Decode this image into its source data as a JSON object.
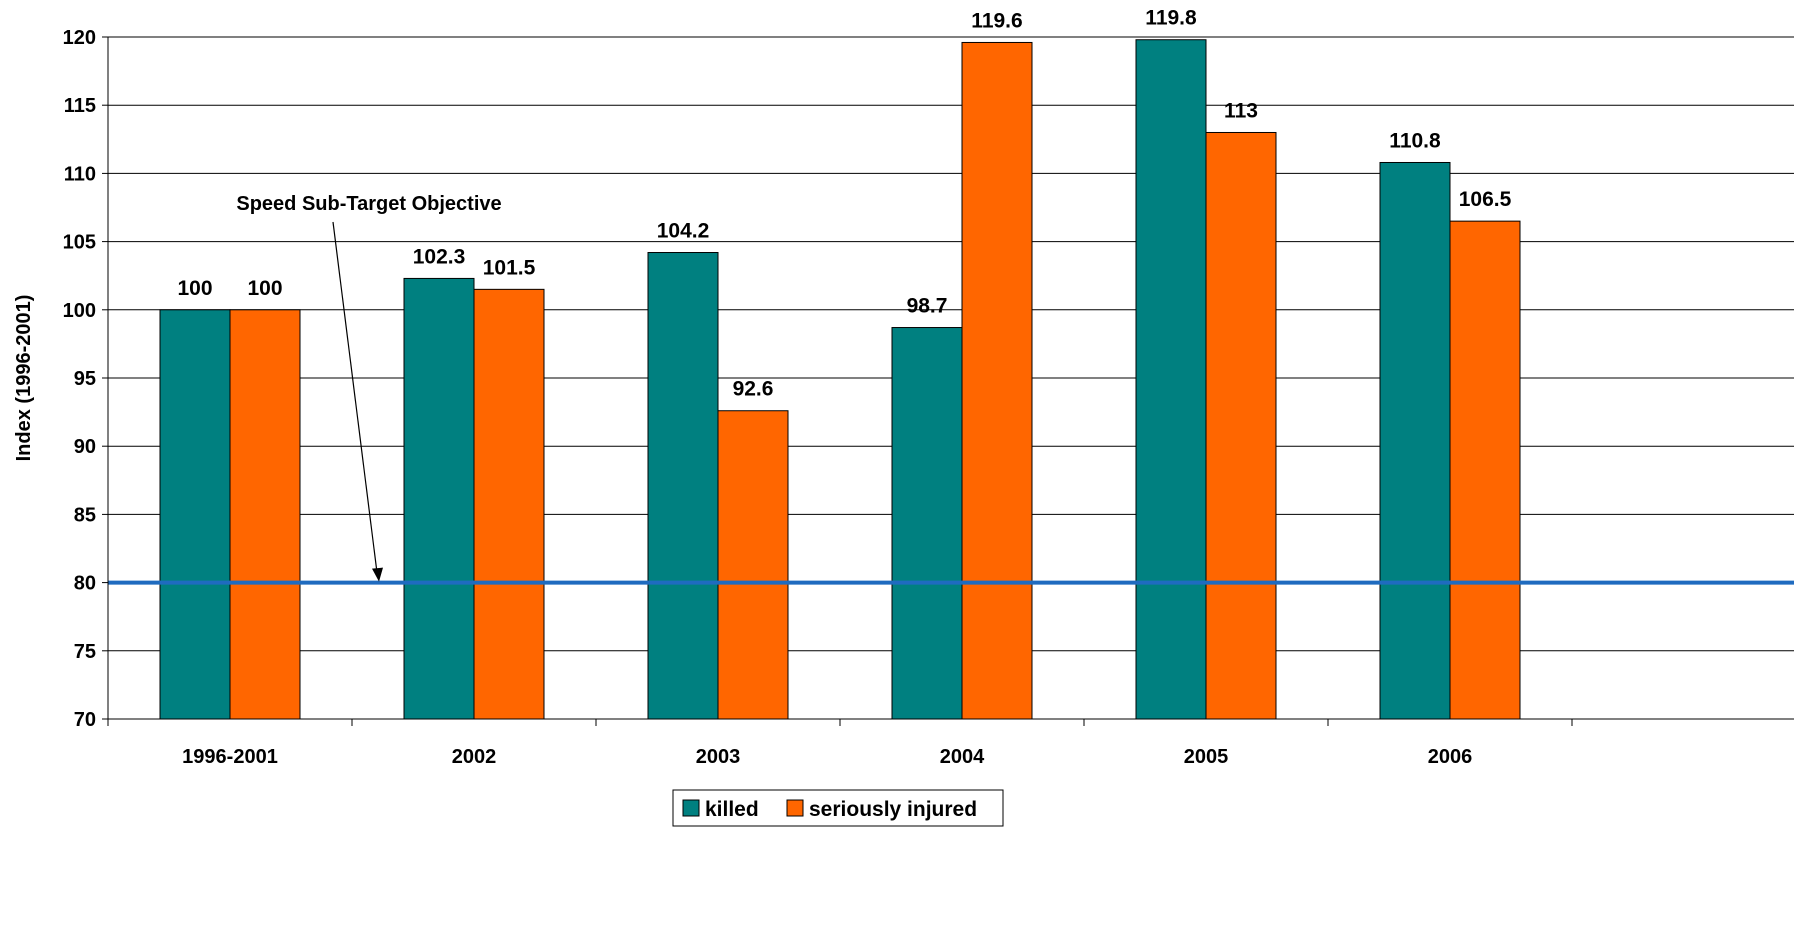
{
  "chart_data": {
    "type": "bar",
    "title": "",
    "xlabel": "",
    "ylabel": "Index (1996-2001)",
    "ylim": [
      70,
      120
    ],
    "yticks": [
      70,
      75,
      80,
      85,
      90,
      95,
      100,
      105,
      110,
      115,
      120
    ],
    "grid": true,
    "legend_position": "bottom",
    "categories": [
      "1996-2001",
      "2002",
      "2003",
      "2004",
      "2005",
      "2006"
    ],
    "series": [
      {
        "name": "killed",
        "color": "#008080",
        "values": [
          100,
          102.3,
          104.2,
          98.7,
          119.8,
          110.8
        ],
        "labels": [
          "100",
          "102.3",
          "104.2",
          "98.7",
          "119.8",
          "110.8"
        ]
      },
      {
        "name": "seriously injured",
        "color": "#FF6600",
        "values": [
          100,
          101.5,
          92.6,
          119.6,
          113,
          106.5
        ],
        "labels": [
          "100",
          "101.5",
          "92.6",
          "119.6",
          "113",
          "106.5"
        ]
      }
    ],
    "target_line": {
      "value": 80,
      "color": "#1F6BBF",
      "label": "Speed Sub-Target Objective"
    }
  }
}
